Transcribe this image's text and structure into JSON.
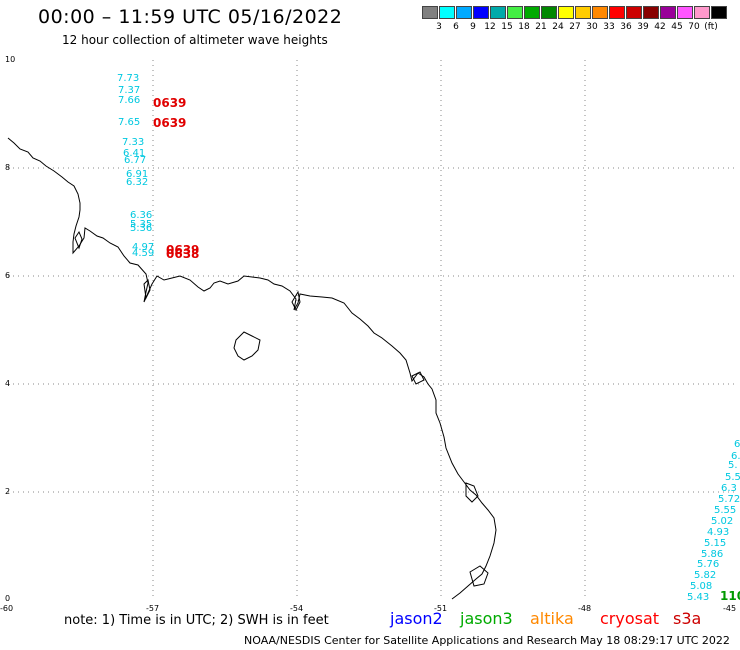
{
  "header": {
    "title": "00:00 – 11:59 UTC 05/16/2022",
    "subtitle": "12 hour collection of altimeter wave heights"
  },
  "legend": {
    "colors": [
      "#808080",
      "#00ffff",
      "#00aaff",
      "#0000ff",
      "#00aaaa",
      "#44ee44",
      "#00aa00",
      "#008800",
      "#ffff00",
      "#ffcc00",
      "#ff8800",
      "#ff0000",
      "#cc0000",
      "#880000",
      "#990099",
      "#ff55ff",
      "#ff99cc",
      "#000000"
    ],
    "labels": [
      "3",
      "6",
      "9",
      "12",
      "15",
      "18",
      "21",
      "24",
      "27",
      "30",
      "33",
      "36",
      "39",
      "42",
      "45",
      "70",
      "(ft)"
    ]
  },
  "axes": {
    "x_ticks": [
      "-60",
      "-57",
      "-54",
      "-51",
      "-48",
      "-45"
    ],
    "y_ticks": [
      "0",
      "2",
      "4",
      "6",
      "8",
      "10"
    ]
  },
  "wave_labels_cyan": [
    "7.73",
    "7.37",
    "7.66",
    "7.65",
    "7.33",
    "6.41",
    "6.77",
    "6.91",
    "6.32",
    "6.36",
    "5.35",
    "5.36",
    "4.97",
    "4.59",
    "6",
    "6.",
    "5.",
    "5.5",
    "6.3",
    "5.72",
    "5.55",
    "5.02",
    "4.93",
    "5.15",
    "5.86",
    "5.76",
    "5.82",
    "5.08",
    "5.43"
  ],
  "wave_labels_red": [
    "0639",
    "0639",
    "0639",
    "0638"
  ],
  "wave_labels_green": [
    "110"
  ],
  "note": "note: 1) Time is in UTC; 2) SWH is in feet",
  "satellites": [
    {
      "name": "jason2",
      "color": "#0000ff"
    },
    {
      "name": "jason3",
      "color": "#00aa00"
    },
    {
      "name": "altika",
      "color": "#ff8800"
    },
    {
      "name": "cryosat",
      "color": "#ff0000"
    },
    {
      "name": "s3a",
      "color": "#cc0000"
    }
  ],
  "footer": {
    "credit": "NOAA/NESDIS Center for Satellite Applications and Research",
    "timestamp": "May 18 08:29:17 UTC 2022"
  }
}
